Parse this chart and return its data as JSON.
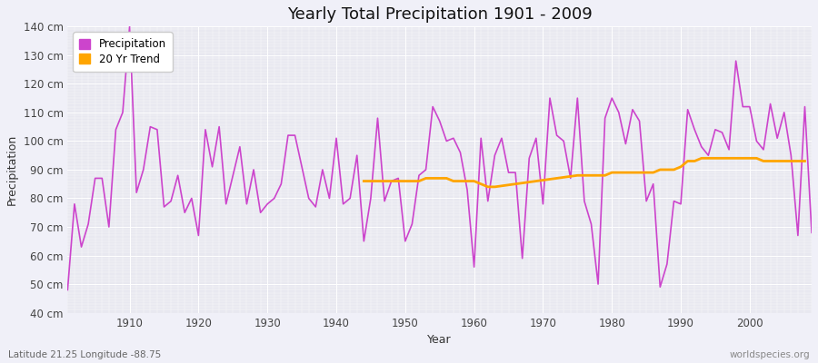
{
  "title": "Yearly Total Precipitation 1901 - 2009",
  "xlabel": "Year",
  "ylabel": "Precipitation",
  "subtitle_left": "Latitude 21.25 Longitude -88.75",
  "subtitle_right": "worldspecies.org",
  "precipitation_color": "#CC44CC",
  "trend_color": "#FFA500",
  "fig_background": "#F0F0F8",
  "plot_background": "#E8E8F0",
  "grid_color": "#FFFFFF",
  "ylim": [
    40,
    140
  ],
  "yticks": [
    40,
    50,
    60,
    70,
    80,
    90,
    100,
    110,
    120,
    130,
    140
  ],
  "years": [
    1901,
    1902,
    1903,
    1904,
    1905,
    1906,
    1907,
    1908,
    1909,
    1910,
    1911,
    1912,
    1913,
    1914,
    1915,
    1916,
    1917,
    1918,
    1919,
    1920,
    1921,
    1922,
    1923,
    1924,
    1925,
    1926,
    1927,
    1928,
    1929,
    1930,
    1931,
    1932,
    1933,
    1934,
    1935,
    1936,
    1937,
    1938,
    1939,
    1940,
    1941,
    1942,
    1943,
    1944,
    1945,
    1946,
    1947,
    1948,
    1949,
    1950,
    1951,
    1952,
    1953,
    1954,
    1955,
    1956,
    1957,
    1958,
    1959,
    1960,
    1961,
    1962,
    1963,
    1964,
    1965,
    1966,
    1967,
    1968,
    1969,
    1970,
    1971,
    1972,
    1973,
    1974,
    1975,
    1976,
    1977,
    1978,
    1979,
    1980,
    1981,
    1982,
    1983,
    1984,
    1985,
    1986,
    1987,
    1988,
    1989,
    1990,
    1991,
    1992,
    1993,
    1994,
    1995,
    1996,
    1997,
    1998,
    1999,
    2000,
    2001,
    2002,
    2003,
    2004,
    2005,
    2006,
    2007,
    2008,
    2009
  ],
  "precipitation": [
    48,
    78,
    63,
    71,
    87,
    87,
    70,
    104,
    110,
    140,
    82,
    90,
    105,
    104,
    77,
    79,
    88,
    75,
    80,
    67,
    104,
    91,
    105,
    78,
    88,
    98,
    78,
    90,
    75,
    78,
    80,
    85,
    102,
    102,
    91,
    80,
    77,
    90,
    80,
    101,
    78,
    80,
    95,
    65,
    80,
    108,
    79,
    86,
    87,
    65,
    71,
    88,
    90,
    112,
    107,
    100,
    101,
    96,
    83,
    56,
    101,
    79,
    95,
    101,
    89,
    89,
    59,
    94,
    101,
    78,
    115,
    102,
    100,
    87,
    115,
    79,
    71,
    50,
    108,
    115,
    110,
    99,
    111,
    107,
    79,
    85,
    49,
    57,
    79,
    78,
    111,
    104,
    98,
    95,
    104,
    103,
    97,
    128,
    112,
    112,
    100,
    97,
    113,
    101,
    110,
    95,
    67,
    112,
    68
  ],
  "trend_years": [
    1944,
    1945,
    1946,
    1947,
    1948,
    1949,
    1950,
    1951,
    1952,
    1953,
    1954,
    1955,
    1956,
    1957,
    1958,
    1959,
    1960,
    1961,
    1962,
    1963,
    1975,
    1976,
    1977,
    1978,
    1979,
    1980,
    1981,
    1982,
    1983,
    1984,
    1985,
    1986,
    1987,
    1988,
    1989,
    1990,
    1991,
    1992,
    1993,
    1994,
    1995,
    1996,
    1997,
    1998,
    1999,
    2000,
    2001,
    2002,
    2003,
    2004,
    2005,
    2006,
    2007,
    2008
  ],
  "trend_values": [
    86,
    86,
    86,
    86,
    86,
    86,
    86,
    86,
    86,
    87,
    87,
    87,
    87,
    86,
    86,
    86,
    86,
    85,
    84,
    84,
    88,
    88,
    88,
    88,
    88,
    89,
    89,
    89,
    89,
    89,
    89,
    89,
    90,
    90,
    90,
    91,
    93,
    93,
    94,
    94,
    94,
    94,
    94,
    94,
    94,
    94,
    94,
    93,
    93,
    93,
    93,
    93,
    93,
    93
  ]
}
